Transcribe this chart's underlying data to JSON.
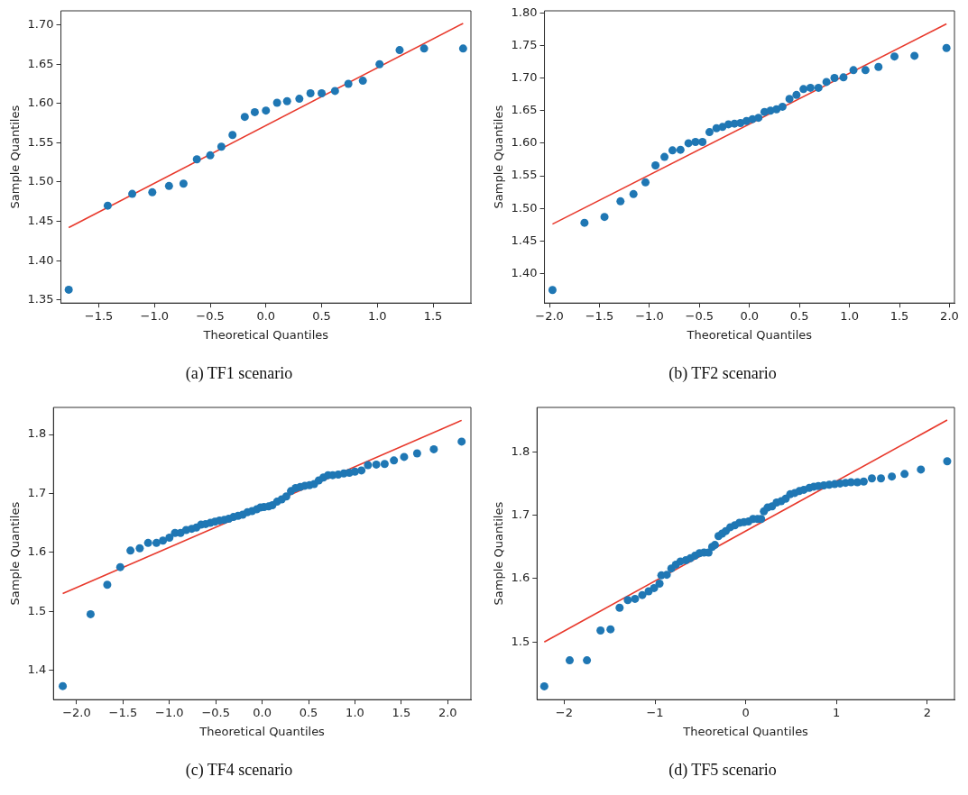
{
  "chart_data": [
    {
      "type": "scatter",
      "title": "(a) TF1 scenario",
      "xlabel": "Theoretical Quantiles",
      "ylabel": "Sample Quantiles",
      "grid": false,
      "legend": false,
      "xlim": [
        -1.84,
        1.84
      ],
      "ylim": [
        1.346,
        1.718
      ],
      "xticks": [
        {
          "value": -1.5,
          "label": "−1.5"
        },
        {
          "value": -1,
          "label": "−1.0"
        },
        {
          "value": -0.5,
          "label": "−0.5"
        },
        {
          "value": 0,
          "label": "0.0"
        },
        {
          "value": 0.5,
          "label": "0.5"
        },
        {
          "value": 1,
          "label": "1.0"
        },
        {
          "value": 1.5,
          "label": "1.5"
        }
      ],
      "yticks": [
        {
          "value": 1.35,
          "label": "1.35"
        },
        {
          "value": 1.4,
          "label": "1.40"
        },
        {
          "value": 1.45,
          "label": "1.45"
        },
        {
          "value": 1.5,
          "label": "1.50"
        },
        {
          "value": 1.55,
          "label": "1.55"
        },
        {
          "value": 1.6,
          "label": "1.60"
        },
        {
          "value": 1.65,
          "label": "1.65"
        },
        {
          "value": 1.7,
          "label": "1.70"
        }
      ],
      "series": [
        {
          "marker": "circle",
          "color": "#1f77b4",
          "x": [
            -1.77,
            -1.42,
            -1.2,
            -1.02,
            -0.87,
            -0.74,
            -0.62,
            -0.5,
            -0.4,
            -0.3,
            -0.19,
            -0.1,
            0,
            0.1,
            0.19,
            0.3,
            0.4,
            0.5,
            0.62,
            0.74,
            0.87,
            1.02,
            1.2,
            1.42,
            1.77
          ],
          "values": [
            1.363,
            1.47,
            1.485,
            1.487,
            1.495,
            1.498,
            1.529,
            1.534,
            1.545,
            1.56,
            1.583,
            1.589,
            1.591,
            1.601,
            1.603,
            1.606,
            1.613,
            1.613,
            1.616,
            1.625,
            1.629,
            1.65,
            1.668,
            1.67,
            1.67
          ]
        },
        {
          "type": "line",
          "marker": "none",
          "color": "#e8392c",
          "x": [
            -1.77,
            1.77
          ],
          "values": [
            1.442,
            1.702
          ]
        }
      ]
    },
    {
      "type": "scatter",
      "title": "(b) TF2 scenario",
      "xlabel": "Theoretical Quantiles",
      "ylabel": "Sample Quantiles",
      "grid": false,
      "legend": false,
      "xlim": [
        -2.05,
        2.05
      ],
      "ylim": [
        1.355,
        1.803
      ],
      "xticks": [
        {
          "value": -2,
          "label": "−2.0"
        },
        {
          "value": -1.5,
          "label": "−1.5"
        },
        {
          "value": -1,
          "label": "−1.0"
        },
        {
          "value": -0.5,
          "label": "−0.5"
        },
        {
          "value": 0,
          "label": "0.0"
        },
        {
          "value": 0.5,
          "label": "0.5"
        },
        {
          "value": 1,
          "label": "1.0"
        },
        {
          "value": 1.5,
          "label": "1.5"
        },
        {
          "value": 2,
          "label": "2.0"
        }
      ],
      "yticks": [
        {
          "value": 1.4,
          "label": "1.40"
        },
        {
          "value": 1.45,
          "label": "1.45"
        },
        {
          "value": 1.5,
          "label": "1.50"
        },
        {
          "value": 1.55,
          "label": "1.55"
        },
        {
          "value": 1.6,
          "label": "1.60"
        },
        {
          "value": 1.65,
          "label": "1.65"
        },
        {
          "value": 1.7,
          "label": "1.70"
        },
        {
          "value": 1.75,
          "label": "1.75"
        },
        {
          "value": 1.8,
          "label": "1.80"
        }
      ],
      "series": [
        {
          "marker": "circle",
          "color": "#1f77b4",
          "x": [
            -1.97,
            -1.65,
            -1.45,
            -1.29,
            -1.16,
            -1.04,
            -0.94,
            -0.85,
            -0.77,
            -0.69,
            -0.61,
            -0.54,
            -0.47,
            -0.4,
            -0.33,
            -0.27,
            -0.21,
            -0.15,
            -0.09,
            -0.03,
            0.03,
            0.09,
            0.15,
            0.21,
            0.27,
            0.33,
            0.4,
            0.47,
            0.54,
            0.61,
            0.69,
            0.77,
            0.85,
            0.94,
            1.04,
            1.16,
            1.29,
            1.45,
            1.65,
            1.97
          ],
          "values": [
            1.375,
            1.478,
            1.487,
            1.511,
            1.522,
            1.54,
            1.566,
            1.579,
            1.589,
            1.59,
            1.6,
            1.602,
            1.602,
            1.617,
            1.623,
            1.625,
            1.629,
            1.63,
            1.631,
            1.634,
            1.637,
            1.639,
            1.648,
            1.65,
            1.652,
            1.656,
            1.668,
            1.674,
            1.683,
            1.685,
            1.685,
            1.694,
            1.7,
            1.701,
            1.712,
            1.712,
            1.717,
            1.733,
            1.734,
            1.746
          ]
        },
        {
          "type": "line",
          "marker": "none",
          "color": "#e8392c",
          "x": [
            -1.97,
            1.97
          ],
          "values": [
            1.476,
            1.783
          ]
        }
      ]
    },
    {
      "type": "scatter",
      "title": "(c) TF4 scenario",
      "xlabel": "Theoretical Quantiles",
      "ylabel": "Sample Quantiles",
      "grid": false,
      "legend": false,
      "xlim": [
        -2.25,
        2.25
      ],
      "ylim": [
        1.35,
        1.846
      ],
      "xticks": [
        {
          "value": -2,
          "label": "−2.0"
        },
        {
          "value": -1.5,
          "label": "−1.5"
        },
        {
          "value": -1,
          "label": "−1.0"
        },
        {
          "value": -0.5,
          "label": "−0.5"
        },
        {
          "value": 0,
          "label": "0.0"
        },
        {
          "value": 0.5,
          "label": "0.5"
        },
        {
          "value": 1,
          "label": "1.0"
        },
        {
          "value": 1.5,
          "label": "1.5"
        },
        {
          "value": 2,
          "label": "2.0"
        }
      ],
      "yticks": [
        1.4,
        1.5,
        1.6,
        1.7,
        1.8
      ],
      "series": [
        {
          "marker": "circle",
          "color": "#1f77b4",
          "x": [
            -2.15,
            -1.85,
            -1.67,
            -1.53,
            -1.42,
            -1.32,
            -1.23,
            -1.14,
            -1.07,
            -1,
            -0.94,
            -0.88,
            -0.82,
            -0.76,
            -0.71,
            -0.66,
            -0.61,
            -0.56,
            -0.51,
            -0.46,
            -0.41,
            -0.36,
            -0.31,
            -0.26,
            -0.21,
            -0.16,
            -0.11,
            -0.06,
            -0.02,
            0.02,
            0.07,
            0.11,
            0.16,
            0.21,
            0.26,
            0.31,
            0.36,
            0.41,
            0.46,
            0.51,
            0.56,
            0.61,
            0.66,
            0.71,
            0.76,
            0.82,
            0.88,
            0.94,
            1,
            1.07,
            1.14,
            1.23,
            1.32,
            1.42,
            1.53,
            1.67,
            1.85,
            2.15
          ],
          "values": [
            1.373,
            1.495,
            1.545,
            1.575,
            1.603,
            1.607,
            1.616,
            1.616,
            1.62,
            1.625,
            1.633,
            1.633,
            1.638,
            1.64,
            1.642,
            1.647,
            1.648,
            1.65,
            1.652,
            1.654,
            1.655,
            1.657,
            1.66,
            1.662,
            1.664,
            1.668,
            1.67,
            1.673,
            1.676,
            1.677,
            1.678,
            1.68,
            1.686,
            1.69,
            1.695,
            1.704,
            1.709,
            1.711,
            1.713,
            1.714,
            1.716,
            1.722,
            1.727,
            1.731,
            1.731,
            1.732,
            1.734,
            1.735,
            1.737,
            1.739,
            1.748,
            1.749,
            1.75,
            1.756,
            1.762,
            1.768,
            1.775,
            1.788
          ]
        },
        {
          "type": "line",
          "marker": "none",
          "color": "#e8392c",
          "x": [
            -2.15,
            2.15
          ],
          "values": [
            1.53,
            1.824
          ]
        }
      ]
    },
    {
      "type": "scatter",
      "title": "(d) TF5 scenario",
      "xlabel": "Theoretical Quantiles",
      "ylabel": "Sample Quantiles",
      "grid": false,
      "legend": false,
      "xlim": [
        -2.3,
        2.3
      ],
      "ylim": [
        1.409,
        1.87
      ],
      "xticks": [
        {
          "value": -2,
          "label": "−2"
        },
        {
          "value": -1,
          "label": "−1"
        },
        0,
        1,
        2
      ],
      "yticks": [
        1.5,
        1.6,
        1.7,
        1.8
      ],
      "series": [
        {
          "marker": "circle",
          "color": "#1f77b4",
          "x": [
            -2.22,
            -1.94,
            -1.75,
            -1.6,
            -1.49,
            -1.39,
            -1.3,
            -1.22,
            -1.14,
            -1.07,
            -1.01,
            -0.95,
            -0.93,
            -0.87,
            -0.82,
            -0.77,
            -0.72,
            -0.66,
            -0.61,
            -0.56,
            -0.51,
            -0.46,
            -0.41,
            -0.37,
            -0.34,
            -0.3,
            -0.26,
            -0.22,
            -0.17,
            -0.12,
            -0.07,
            -0.02,
            0.03,
            0.08,
            0.13,
            0.17,
            0.2,
            0.24,
            0.29,
            0.34,
            0.39,
            0.44,
            0.49,
            0.54,
            0.59,
            0.64,
            0.7,
            0.75,
            0.8,
            0.86,
            0.92,
            0.98,
            1.04,
            1.1,
            1.16,
            1.23,
            1.3,
            1.39,
            1.49,
            1.61,
            1.75,
            1.93,
            2.22
          ],
          "values": [
            1.43,
            1.471,
            1.471,
            1.518,
            1.52,
            1.554,
            1.566,
            1.568,
            1.574,
            1.58,
            1.585,
            1.592,
            1.605,
            1.606,
            1.616,
            1.622,
            1.627,
            1.629,
            1.632,
            1.636,
            1.64,
            1.641,
            1.641,
            1.65,
            1.653,
            1.667,
            1.671,
            1.675,
            1.681,
            1.684,
            1.688,
            1.689,
            1.69,
            1.694,
            1.694,
            1.694,
            1.706,
            1.712,
            1.714,
            1.72,
            1.722,
            1.726,
            1.733,
            1.735,
            1.738,
            1.74,
            1.743,
            1.745,
            1.746,
            1.747,
            1.748,
            1.749,
            1.75,
            1.751,
            1.752,
            1.752,
            1.753,
            1.758,
            1.758,
            1.761,
            1.765,
            1.772,
            1.785
          ]
        },
        {
          "type": "line",
          "marker": "none",
          "color": "#e8392c",
          "x": [
            -2.22,
            2.22
          ],
          "values": [
            1.5,
            1.85
          ]
        }
      ]
    }
  ]
}
